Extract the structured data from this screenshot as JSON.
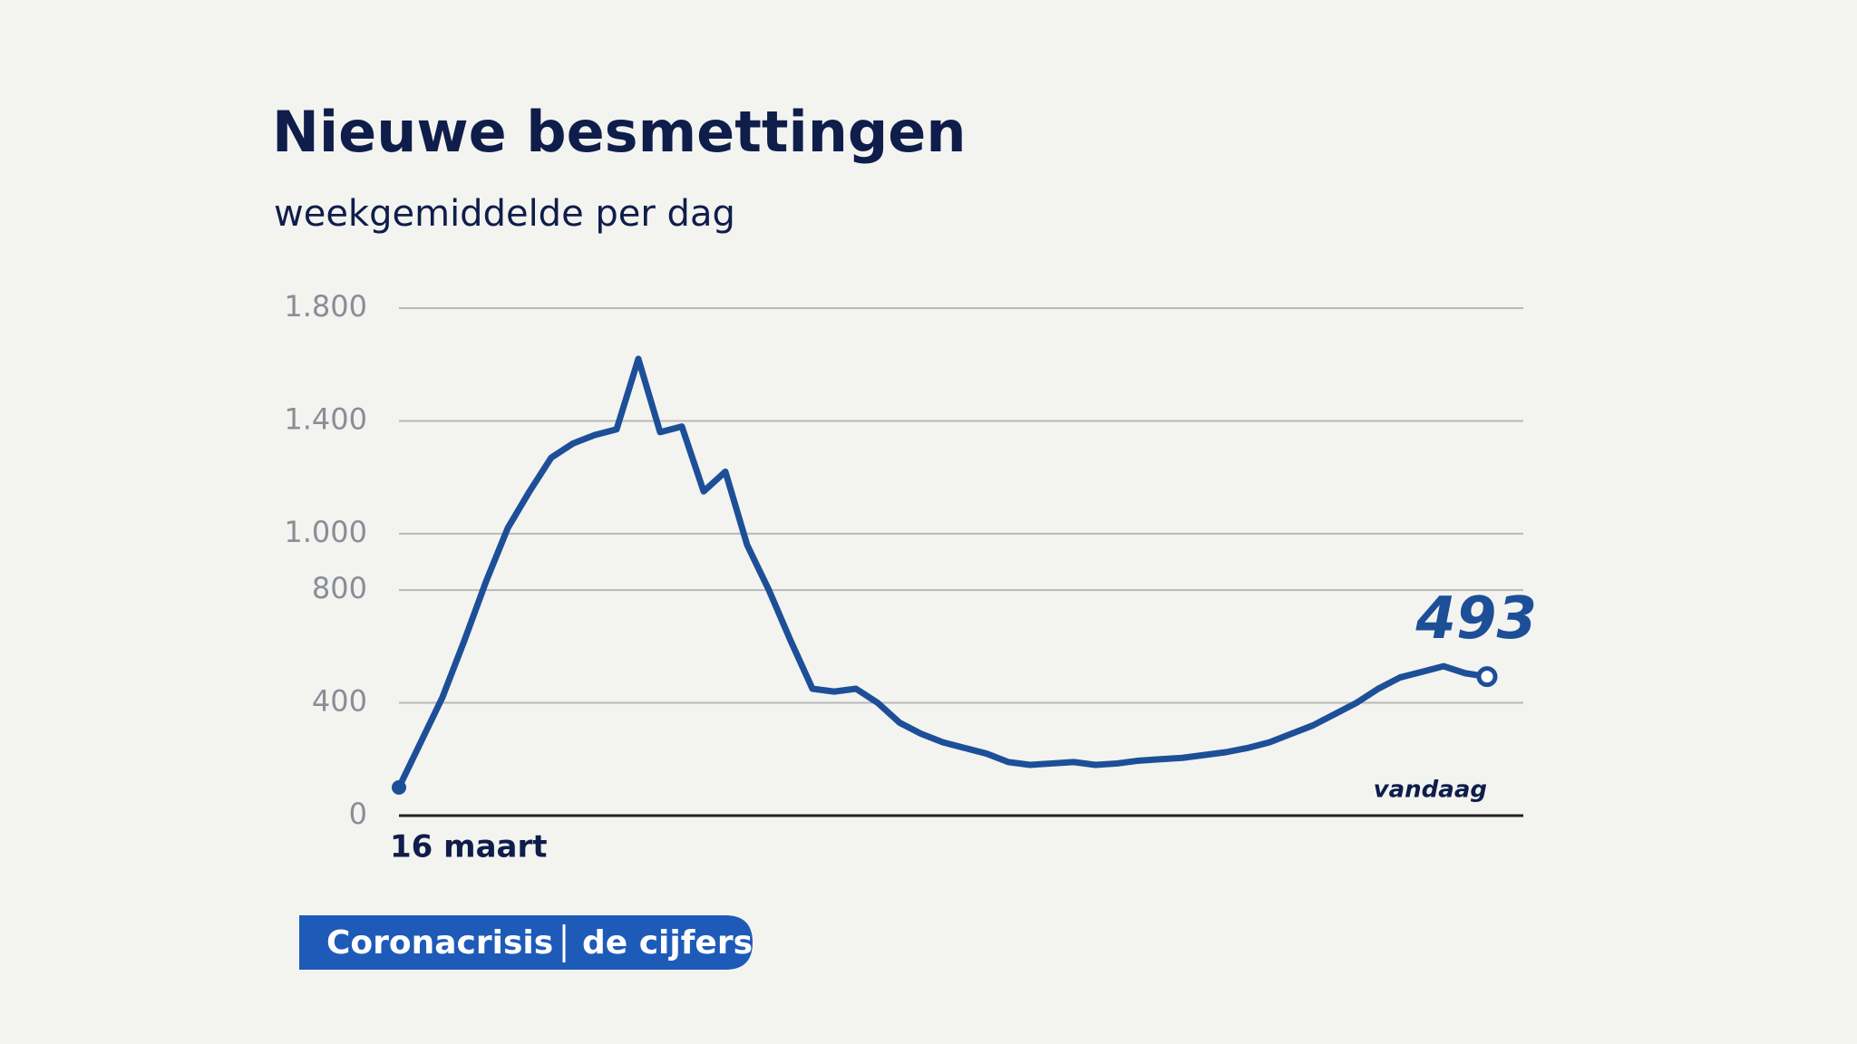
{
  "chart_data": {
    "type": "line",
    "title": "Nieuwe besmettingen",
    "subtitle": "weekgemiddelde per dag",
    "categories": [
      "16 maart",
      null,
      null,
      null,
      null,
      null,
      null,
      null,
      null,
      null,
      null,
      null,
      null,
      null,
      null,
      null,
      null,
      null,
      null,
      null,
      null,
      null,
      null,
      null,
      null,
      null,
      null,
      null,
      null,
      null,
      null,
      null,
      null,
      null,
      null,
      null,
      null,
      null,
      null,
      null,
      null,
      null,
      null,
      null,
      null,
      null,
      null,
      null,
      null,
      null,
      "vandaag"
    ],
    "series": [
      {
        "color": "#1d4f98",
        "values": [
          100,
          260,
          420,
          620,
          830,
          1020,
          1150,
          1270,
          1320,
          1350,
          1370,
          1620,
          1360,
          1380,
          1150,
          1220,
          960,
          800,
          620,
          450,
          440,
          450,
          400,
          330,
          290,
          260,
          240,
          220,
          190,
          180,
          185,
          190,
          180,
          185,
          195,
          200,
          205,
          215,
          225,
          240,
          260,
          290,
          320,
          360,
          400,
          450,
          490,
          510,
          530,
          505,
          493
        ]
      }
    ],
    "ylim": [
      0,
      1800
    ],
    "yticks": [
      0,
      400,
      800,
      {
        "value": 1000,
        "label": "1.000"
      },
      {
        "value": 1400,
        "label": "1.400"
      },
      {
        "value": 1800,
        "label": "1.800"
      }
    ],
    "grid": true
  },
  "banner": {
    "left": "Coronacrisis",
    "right": "de cijfers"
  }
}
